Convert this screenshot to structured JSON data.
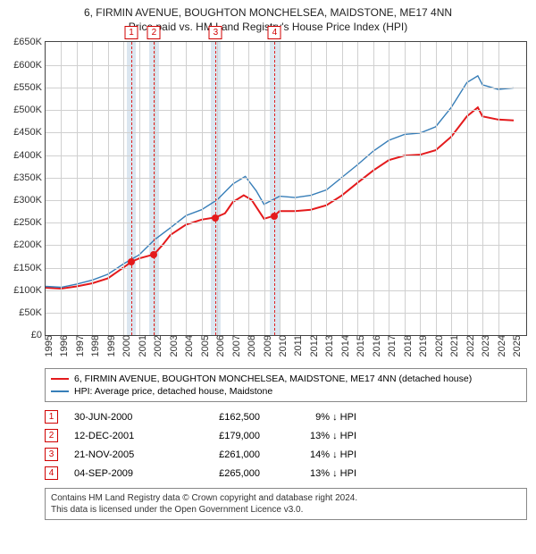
{
  "titles": {
    "line1": "6, FIRMIN AVENUE, BOUGHTON MONCHELSEA, MAIDSTONE, ME17 4NN",
    "line2": "Price paid vs. HM Land Registry's House Price Index (HPI)"
  },
  "chart": {
    "type": "line",
    "x_range": [
      1995,
      2025.8
    ],
    "y_range": [
      0,
      650000
    ],
    "y_ticks": [
      0,
      50000,
      100000,
      150000,
      200000,
      250000,
      300000,
      350000,
      400000,
      450000,
      500000,
      550000,
      600000,
      650000
    ],
    "y_tick_labels": [
      "£0",
      "£50K",
      "£100K",
      "£150K",
      "£200K",
      "£250K",
      "£300K",
      "£350K",
      "£400K",
      "£450K",
      "£500K",
      "£550K",
      "£600K",
      "£650K"
    ],
    "x_ticks": [
      1995,
      1996,
      1997,
      1998,
      1999,
      2000,
      2001,
      2002,
      2003,
      2004,
      2005,
      2006,
      2007,
      2008,
      2009,
      2010,
      2011,
      2012,
      2013,
      2014,
      2015,
      2016,
      2017,
      2018,
      2019,
      2020,
      2021,
      2022,
      2023,
      2024,
      2025
    ],
    "grid_color": "#d0d0d0",
    "border_color": "#444444",
    "background_color": "#ffffff",
    "event_band_color": "#dbe6f0",
    "event_line_color": "#e02020",
    "series": [
      {
        "name": "property",
        "label": "6, FIRMIN AVENUE, BOUGHTON MONCHELSEA, MAIDSTONE, ME17 4NN (detached house)",
        "color": "#e41a1c",
        "width": 2,
        "points": [
          [
            1995,
            105000
          ],
          [
            1996,
            103000
          ],
          [
            1997,
            108000
          ],
          [
            1998,
            115000
          ],
          [
            1999,
            126000
          ],
          [
            2000,
            150000
          ],
          [
            2000.5,
            162500
          ],
          [
            2001,
            170000
          ],
          [
            2001.95,
            179000
          ],
          [
            2002.5,
            200000
          ],
          [
            2003,
            222000
          ],
          [
            2004,
            245000
          ],
          [
            2005,
            256000
          ],
          [
            2005.9,
            261000
          ],
          [
            2006.5,
            270000
          ],
          [
            2007,
            295000
          ],
          [
            2007.7,
            310000
          ],
          [
            2008.2,
            300000
          ],
          [
            2009,
            258000
          ],
          [
            2009.68,
            265000
          ],
          [
            2010,
            275000
          ],
          [
            2011,
            275000
          ],
          [
            2012,
            278000
          ],
          [
            2013,
            288000
          ],
          [
            2014,
            310000
          ],
          [
            2015,
            338000
          ],
          [
            2016,
            365000
          ],
          [
            2017,
            388000
          ],
          [
            2018,
            398000
          ],
          [
            2019,
            400000
          ],
          [
            2020,
            410000
          ],
          [
            2021,
            440000
          ],
          [
            2022,
            485000
          ],
          [
            2022.7,
            505000
          ],
          [
            2023,
            485000
          ],
          [
            2024,
            478000
          ],
          [
            2025,
            476000
          ]
        ]
      },
      {
        "name": "hpi",
        "label": "HPI: Average price, detached house, Maidstone",
        "color": "#377eb8",
        "width": 1.4,
        "points": [
          [
            1995,
            108000
          ],
          [
            1996,
            106000
          ],
          [
            1997,
            113000
          ],
          [
            1998,
            122000
          ],
          [
            1999,
            135000
          ],
          [
            2000,
            158000
          ],
          [
            2001,
            178000
          ],
          [
            2002,
            212000
          ],
          [
            2003,
            238000
          ],
          [
            2004,
            265000
          ],
          [
            2005,
            278000
          ],
          [
            2006,
            300000
          ],
          [
            2007,
            335000
          ],
          [
            2007.8,
            352000
          ],
          [
            2008.5,
            320000
          ],
          [
            2009,
            290000
          ],
          [
            2010,
            308000
          ],
          [
            2011,
            305000
          ],
          [
            2012,
            310000
          ],
          [
            2013,
            322000
          ],
          [
            2014,
            350000
          ],
          [
            2015,
            378000
          ],
          [
            2016,
            408000
          ],
          [
            2017,
            432000
          ],
          [
            2018,
            445000
          ],
          [
            2019,
            448000
          ],
          [
            2020,
            462000
          ],
          [
            2021,
            505000
          ],
          [
            2022,
            560000
          ],
          [
            2022.7,
            575000
          ],
          [
            2023,
            555000
          ],
          [
            2024,
            545000
          ],
          [
            2025,
            548000
          ]
        ]
      }
    ],
    "events": [
      {
        "n": "1",
        "x": 2000.5,
        "date": "30-JUN-2000",
        "price_text": "£162,500",
        "diff_text": "9% ↓ HPI",
        "price": 162500,
        "band_width_years": 0.6
      },
      {
        "n": "2",
        "x": 2001.95,
        "date": "12-DEC-2001",
        "price_text": "£179,000",
        "diff_text": "13% ↓ HPI",
        "price": 179000,
        "band_width_years": 0.6
      },
      {
        "n": "3",
        "x": 2005.9,
        "date": "21-NOV-2005",
        "price_text": "£261,000",
        "diff_text": "14% ↓ HPI",
        "price": 261000,
        "band_width_years": 0.6
      },
      {
        "n": "4",
        "x": 2009.68,
        "date": "04-SEP-2009",
        "price_text": "£265,000",
        "diff_text": "13% ↓ HPI",
        "price": 265000,
        "band_width_years": 0.6
      }
    ],
    "marker_color": "#e41a1c",
    "marker_size": 8
  },
  "legend": {
    "items": [
      {
        "color": "#e41a1c",
        "label_key": "chart.series.0.label"
      },
      {
        "color": "#377eb8",
        "label_key": "chart.series.1.label"
      }
    ]
  },
  "footnotes": {
    "line1": "Contains HM Land Registry data © Crown copyright and database right 2024.",
    "line2": "This data is licensed under the Open Government Licence v3.0."
  }
}
